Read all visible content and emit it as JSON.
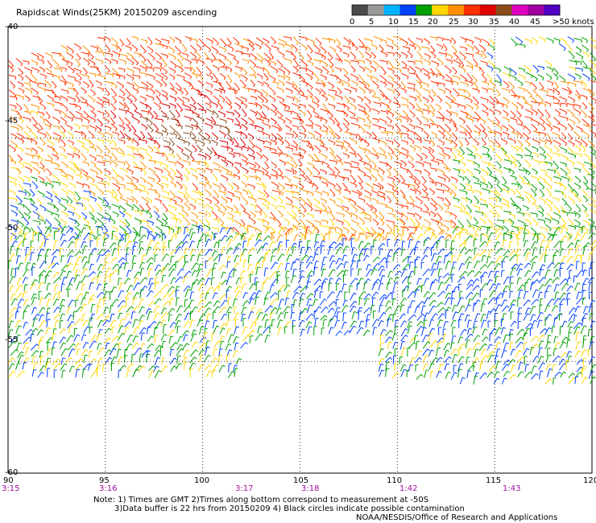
{
  "header": {
    "title": "Rapidscat Winds(25KM) 20150209 ascending"
  },
  "colorbar": {
    "swatches": [
      "#4a4a4a",
      "#9a9a9a",
      "#00b4ff",
      "#0040ff",
      "#00a000",
      "#ffd800",
      "#ff9000",
      "#ff3000",
      "#e00000",
      "#8a4a1a",
      "#e000c0",
      "#a000a0",
      "#5000c0"
    ],
    "tick_labels": [
      "0",
      "5",
      "10",
      "15",
      "20",
      "25",
      "30",
      "35",
      "40",
      "45",
      ">50 knots"
    ]
  },
  "axes": {
    "lat_labels": [
      "-40",
      "-45",
      "-50",
      "-55",
      "-60"
    ],
    "lon_labels": [
      "90",
      "95",
      "100",
      "105",
      "110",
      "115",
      "120"
    ],
    "time_labels": [
      "3:15",
      "3:16",
      "3:17",
      "3:18",
      "1:42",
      "1:43"
    ],
    "lon_range": [
      90,
      120
    ],
    "lat_range": [
      -60,
      -40
    ]
  },
  "notes": {
    "line1": "Note: 1) Times are GMT 2)Times along bottom correspond to measurement at -50S",
    "line2": "3)Data buffer is 22 hrs from 20150209 4) Black circles indicate possible contamination",
    "line3": "NOAA/NESDIS/Office of Research and Applications"
  }
}
